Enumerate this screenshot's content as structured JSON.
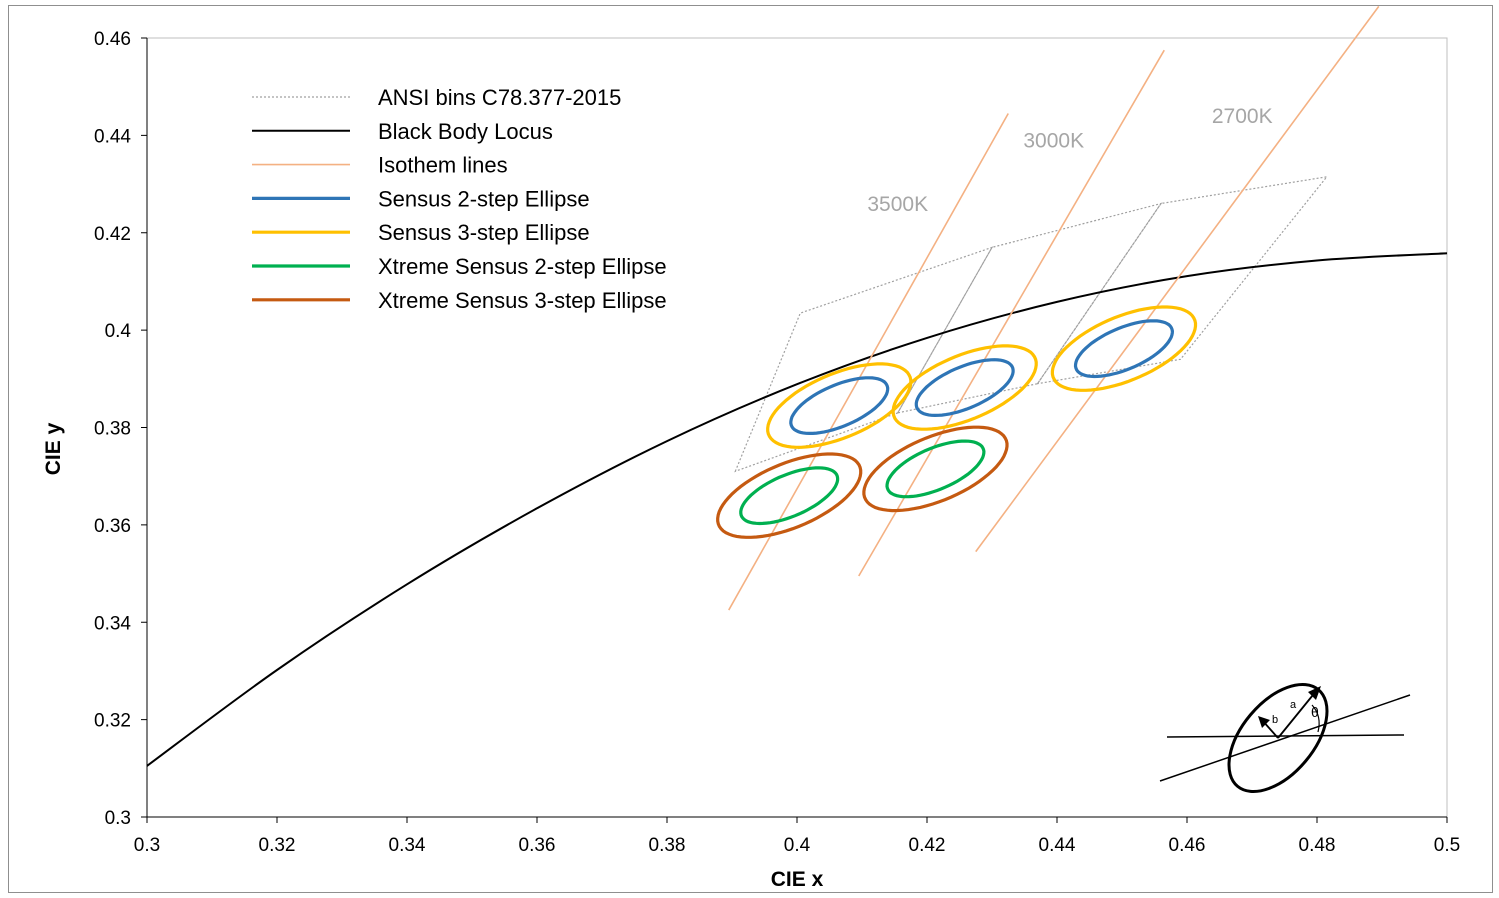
{
  "chart_data": {
    "type": "line",
    "title": "",
    "xlabel": "CIE x",
    "ylabel": "CIE y",
    "xlim": [
      0.3,
      0.5
    ],
    "ylim": [
      0.3,
      0.46
    ],
    "x_ticks": [
      "0.3",
      "0.32",
      "0.34",
      "0.36",
      "0.38",
      "0.4",
      "0.42",
      "0.44",
      "0.46",
      "0.48",
      "0.5"
    ],
    "y_ticks": [
      "0.3",
      "0.32",
      "0.34",
      "0.36",
      "0.38",
      "0.4",
      "0.42",
      "0.44",
      "0.46"
    ],
    "legend_position": "top-left",
    "colors": {
      "ansi": "#a0a0a0",
      "locus": "#000000",
      "isotherm": "#f4b183",
      "sensus2": "#2e75b6",
      "sensus3": "#ffc000",
      "xtreme2": "#00b050",
      "xtreme3": "#c55a11",
      "cct_label": "#a6a6a6"
    },
    "legend": [
      {
        "key": "ansi",
        "label": "ANSI bins C78.377-2015"
      },
      {
        "key": "locus",
        "label": "Black Body Locus"
      },
      {
        "key": "isotherm",
        "label": "Isothem lines"
      },
      {
        "key": "sensus2",
        "label": "Sensus 2-step Ellipse"
      },
      {
        "key": "sensus3",
        "label": "Sensus 3-step Ellipse"
      },
      {
        "key": "xtreme2",
        "label": "Xtreme Sensus 2-step Ellipse"
      },
      {
        "key": "xtreme3",
        "label": "Xtreme Sensus 3-step Ellipse"
      }
    ],
    "black_body_locus": [
      [
        0.3,
        0.3105
      ],
      [
        0.32,
        0.3302
      ],
      [
        0.34,
        0.3478
      ],
      [
        0.36,
        0.3634
      ],
      [
        0.38,
        0.3772
      ],
      [
        0.4,
        0.3889
      ],
      [
        0.42,
        0.3984
      ],
      [
        0.44,
        0.4058
      ],
      [
        0.46,
        0.4111
      ],
      [
        0.48,
        0.4143
      ],
      [
        0.5,
        0.4158
      ]
    ],
    "isotherm_lines": [
      {
        "label": "3500K",
        "start": [
          0.3895,
          0.3425
        ],
        "end": [
          0.4325,
          0.4445
        ],
        "label_at": [
          0.4155,
          0.4245
        ]
      },
      {
        "label": "3000K",
        "start": [
          0.4095,
          0.3495
        ],
        "end": [
          0.4565,
          0.4575
        ],
        "label_at": [
          0.4395,
          0.4375
        ]
      },
      {
        "label": "2700K",
        "start": [
          0.4275,
          0.3545
        ],
        "end": [
          0.4895,
          0.4665
        ],
        "label_at": [
          0.4685,
          0.4425
        ]
      }
    ],
    "ansi_bins": [
      [
        [
          0.3905,
          0.371
        ],
        [
          0.4005,
          0.4035
        ],
        [
          0.43,
          0.417
        ],
        [
          0.4155,
          0.383
        ]
      ],
      [
        [
          0.4155,
          0.383
        ],
        [
          0.43,
          0.417
        ],
        [
          0.456,
          0.426
        ],
        [
          0.437,
          0.389
        ]
      ],
      [
        [
          0.437,
          0.389
        ],
        [
          0.456,
          0.426
        ],
        [
          0.4815,
          0.4315
        ],
        [
          0.459,
          0.394
        ]
      ]
    ],
    "ellipses": [
      {
        "key": "sensus3",
        "cx": 0.4065,
        "cy": 0.3845,
        "a": 0.0125,
        "b": 0.0062,
        "theta_deg": 33
      },
      {
        "key": "sensus2",
        "cx": 0.4065,
        "cy": 0.3845,
        "a": 0.0085,
        "b": 0.004,
        "theta_deg": 33
      },
      {
        "key": "sensus3",
        "cx": 0.4258,
        "cy": 0.3882,
        "a": 0.0125,
        "b": 0.0062,
        "theta_deg": 33
      },
      {
        "key": "sensus2",
        "cx": 0.4258,
        "cy": 0.3882,
        "a": 0.0085,
        "b": 0.004,
        "theta_deg": 33
      },
      {
        "key": "sensus3",
        "cx": 0.4503,
        "cy": 0.3962,
        "a": 0.0125,
        "b": 0.0062,
        "theta_deg": 33
      },
      {
        "key": "sensus2",
        "cx": 0.4503,
        "cy": 0.3962,
        "a": 0.0085,
        "b": 0.004,
        "theta_deg": 33
      },
      {
        "key": "xtreme3",
        "cx": 0.3988,
        "cy": 0.366,
        "a": 0.0125,
        "b": 0.0062,
        "theta_deg": 33
      },
      {
        "key": "xtreme2",
        "cx": 0.3988,
        "cy": 0.366,
        "a": 0.0085,
        "b": 0.004,
        "theta_deg": 33
      },
      {
        "key": "xtreme3",
        "cx": 0.4213,
        "cy": 0.3715,
        "a": 0.0125,
        "b": 0.0062,
        "theta_deg": 33
      },
      {
        "key": "xtreme2",
        "cx": 0.4213,
        "cy": 0.3715,
        "a": 0.0085,
        "b": 0.004,
        "theta_deg": 33
      }
    ],
    "inset_diagram": {
      "description_labels": [
        "a",
        "b",
        "θ"
      ]
    }
  }
}
